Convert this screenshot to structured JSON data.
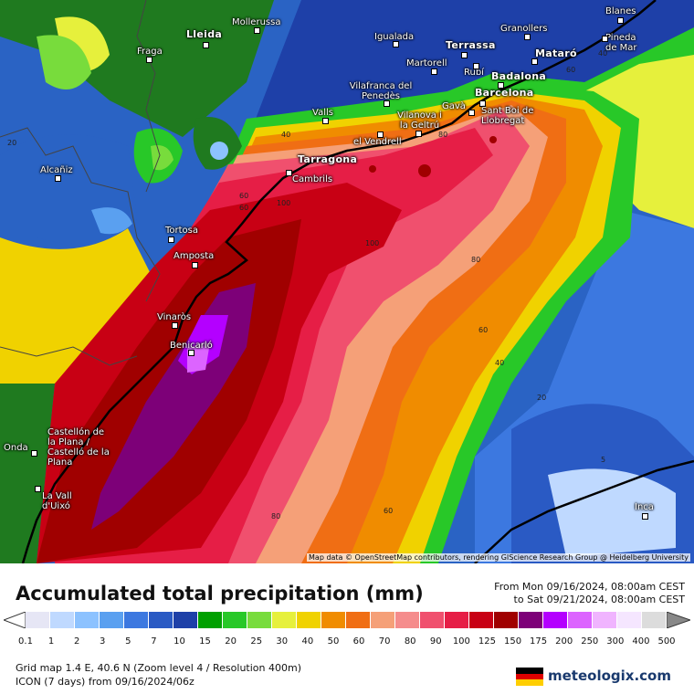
{
  "map": {
    "credits": "Map data © OpenStreetMap contributors, rendering GIScience Research Group @ Heidelberg University",
    "cities": [
      {
        "name": "Lleida",
        "big": true
      },
      {
        "name": "Mollerussa"
      },
      {
        "name": "Igualada"
      },
      {
        "name": "Granollers"
      },
      {
        "name": "Blanes"
      },
      {
        "name": "Terrassa",
        "big": true
      },
      {
        "name": "Pineda de Mar"
      },
      {
        "name": "Fraga"
      },
      {
        "name": "Martorell"
      },
      {
        "name": "Rubí"
      },
      {
        "name": "Mataró",
        "big": true
      },
      {
        "name": "Badalona",
        "big": true
      },
      {
        "name": "Barcelona",
        "big": true
      },
      {
        "name": "Vilafranca del Penedès"
      },
      {
        "name": "Gavà"
      },
      {
        "name": "Sant Boi de Llobregat"
      },
      {
        "name": "Valls"
      },
      {
        "name": "Vilanova i la Geltrú"
      },
      {
        "name": "el Vendrell"
      },
      {
        "name": "Tarragona",
        "big": true
      },
      {
        "name": "Cambrils"
      },
      {
        "name": "Alcañiz"
      },
      {
        "name": "Tortosa"
      },
      {
        "name": "Amposta"
      },
      {
        "name": "Vinaròs"
      },
      {
        "name": "Benicarló"
      },
      {
        "name": "Castellón de la Plana / Castelló de la Plana"
      },
      {
        "name": "Onda"
      },
      {
        "name": "La Vall d'Uixó"
      },
      {
        "name": "Inca"
      }
    ],
    "isolines": [
      "40",
      "20",
      "60",
      "40",
      "80",
      "60",
      "100",
      "100",
      "80",
      "60",
      "40",
      "20",
      "5",
      "80",
      "60",
      "20"
    ]
  },
  "legend": {
    "title": "Accumulated total precipitation (mm)",
    "period_from": "From Mon 09/16/2024, 08:00am CEST",
    "period_to": "to Sat 09/21/2024, 08:00am CEST",
    "scale": [
      "0.1",
      "1",
      "2",
      "3",
      "5",
      "7",
      "10",
      "15",
      "20",
      "25",
      "30",
      "40",
      "50",
      "60",
      "70",
      "80",
      "90",
      "100",
      "125",
      "150",
      "175",
      "200",
      "250",
      "300",
      "400",
      "500"
    ],
    "colors": [
      "#e6e6f5",
      "#bfd9ff",
      "#8cc2ff",
      "#5aa0f0",
      "#3c78e0",
      "#2a5ac4",
      "#1e40a8",
      "#00a000",
      "#28c828",
      "#78dc3c",
      "#e6f03c",
      "#f0d200",
      "#f08c00",
      "#f06e14",
      "#f5a078",
      "#f58c8c",
      "#f0506e",
      "#e61e46",
      "#c80014",
      "#a00000",
      "#7d0078",
      "#b400ff",
      "#dc64ff",
      "#f0b4ff",
      "#f5e6ff",
      "#dcdcdc"
    ],
    "grid": "Grid map 1.4 E, 40.6 N (Zoom level 4 / Resolution 400m)",
    "model": "ICON (7 days) from 09/16/2024/06z",
    "brand": "meteologix.com"
  }
}
